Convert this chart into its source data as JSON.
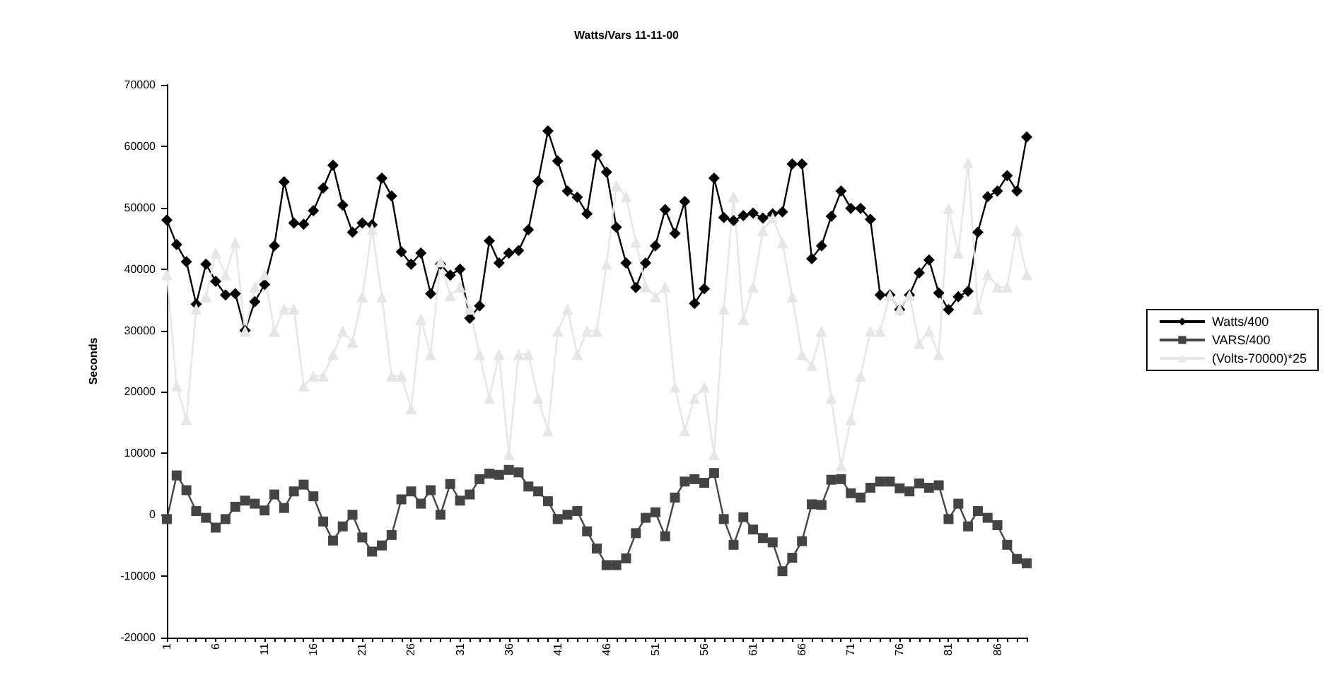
{
  "chart_data": {
    "type": "line",
    "title": "Watts/Vars 11-11-00",
    "ylabel": "Seconds",
    "categories": [
      "1",
      null,
      null,
      null,
      null,
      "6",
      null,
      null,
      null,
      null,
      "11",
      null,
      null,
      null,
      null,
      "16",
      null,
      null,
      null,
      null,
      "21",
      null,
      null,
      null,
      null,
      "26",
      null,
      null,
      null,
      null,
      "31",
      null,
      null,
      null,
      null,
      "36",
      null,
      null,
      null,
      null,
      "41",
      null,
      null,
      null,
      null,
      "46",
      null,
      null,
      null,
      null,
      "51",
      null,
      null,
      null,
      null,
      "56",
      null,
      null,
      null,
      null,
      "61",
      null,
      null,
      null,
      null,
      "66",
      null,
      null,
      null,
      null,
      "71",
      null,
      null,
      null,
      null,
      "76",
      null,
      null,
      null,
      null,
      "81",
      null,
      null,
      null,
      null,
      "86",
      null,
      null,
      null
    ],
    "series": [
      {
        "name": "Watts/400",
        "color": "#000000",
        "marker": "diamond",
        "values": [
          48000,
          44000,
          41200,
          34300,
          40800,
          38000,
          35800,
          36000,
          30000,
          34700,
          37500,
          43800,
          54200,
          47500,
          47300,
          49500,
          53200,
          56900,
          50400,
          46000,
          47500,
          47200,
          54800,
          51900,
          42800,
          40800,
          42600,
          36000,
          40800,
          39000,
          40000,
          32000,
          34000,
          44600,
          41000,
          42600,
          43000,
          46400,
          54300,
          62500,
          57600,
          52700,
          51700,
          49000,
          58600,
          55800,
          46800,
          41000,
          37000,
          41000,
          43800,
          49700,
          45800,
          51000,
          34400,
          36800,
          54800,
          48400,
          47900,
          48700,
          49100,
          48300,
          49000,
          49300,
          57100,
          57100,
          41700,
          43800,
          48600,
          52700,
          49900,
          49900,
          48100,
          35800,
          35800,
          33400,
          35800,
          39400,
          41500,
          36100,
          33400,
          35500,
          36400,
          46000,
          51800,
          52700,
          55200,
          52700,
          61500
        ]
      },
      {
        "name": "VARS/400",
        "color": "#444444",
        "marker": "square",
        "values": [
          -700,
          6400,
          4000,
          600,
          -500,
          -2100,
          -700,
          1300,
          2300,
          1800,
          700,
          3300,
          1100,
          3800,
          4900,
          3000,
          -1100,
          -4200,
          -1900,
          0,
          -3700,
          -6000,
          -5000,
          -3300,
          2500,
          3800,
          1800,
          4000,
          0,
          5000,
          2300,
          3300,
          5800,
          6700,
          6500,
          7300,
          6900,
          4600,
          3800,
          2200,
          -700,
          0,
          600,
          -2700,
          -5500,
          -8200,
          -8200,
          -7100,
          -3000,
          -500,
          400,
          -3500,
          2800,
          5400,
          5800,
          5200,
          6800,
          -700,
          -4900,
          -400,
          -2400,
          -3800,
          -4500,
          -9200,
          -7000,
          -4300,
          1700,
          1600,
          5700,
          5800,
          3500,
          2800,
          4400,
          5400,
          5400,
          4300,
          3800,
          5100,
          4400,
          4800,
          -700,
          1800,
          -1900,
          600,
          -500,
          -1700,
          -4900,
          -7200,
          -7900
        ]
      },
      {
        "name": "(Volts-70000)*25",
        "color": "#e6e6e6",
        "marker": "triangle",
        "values": [
          39100,
          21000,
          15500,
          33500,
          35500,
          42600,
          39100,
          44300,
          29900,
          37100,
          39100,
          29900,
          33500,
          33500,
          21000,
          22600,
          22600,
          26100,
          29900,
          28100,
          35500,
          46500,
          35500,
          22600,
          22600,
          17300,
          31800,
          26100,
          41200,
          35700,
          37100,
          33500,
          26100,
          19000,
          26100,
          9800,
          26100,
          26100,
          19000,
          13700,
          29900,
          33500,
          26100,
          29900,
          29900,
          40800,
          53600,
          51800,
          44400,
          37100,
          35500,
          37100,
          20800,
          13700,
          19000,
          20800,
          9800,
          33500,
          51800,
          31800,
          37100,
          46300,
          48300,
          44300,
          35500,
          26100,
          24300,
          29900,
          19000,
          8000,
          15500,
          22600,
          29900,
          29900,
          35700,
          33500,
          35700,
          27900,
          29900,
          26100,
          49900,
          42600,
          57300,
          33500,
          39100,
          37100,
          37100,
          46300,
          39100
        ]
      }
    ],
    "ylim": [
      -20000,
      70000
    ],
    "yticks": [
      -20000,
      -10000,
      0,
      10000,
      20000,
      30000,
      40000,
      50000,
      60000,
      70000
    ],
    "grid": false,
    "legend": "right"
  }
}
